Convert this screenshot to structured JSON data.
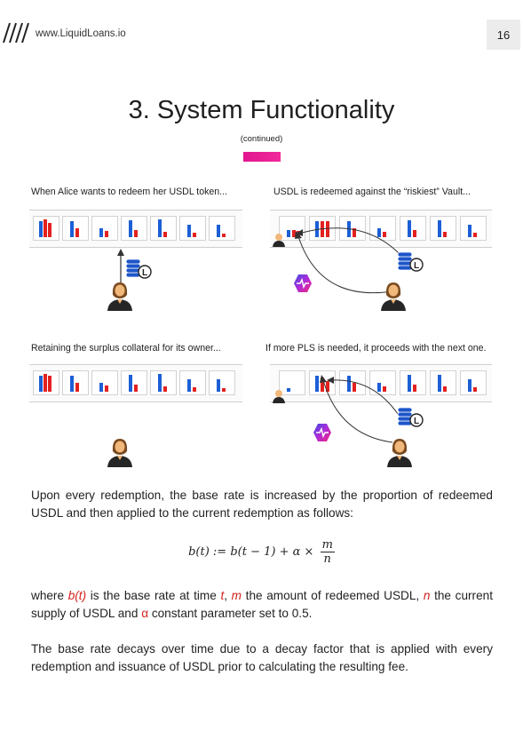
{
  "header": {
    "site_url": "www.LiquidLoans.io",
    "page_number": "16"
  },
  "section": {
    "title": "3. System Functionality",
    "subtitle": "(continued)",
    "accent_color": "#e91a92"
  },
  "panels": [
    {
      "caption": "When Alice wants to redeem her USDL token..."
    },
    {
      "caption": "USDL is redeemed against the “riskiest” Vault..."
    },
    {
      "caption": "Retaining the surplus collateral for its owner..."
    },
    {
      "caption": "If more PLS is needed, it proceeds with the next one."
    }
  ],
  "icons": {
    "coin_stack_letter": "L"
  },
  "body": {
    "para1": "Upon every redemption, the base rate is increased by the proportion of redeemed USDL and then applied to the current redemption as follows:",
    "formula_lhs": "b(t) := b(t − 1) + α ×",
    "formula_num": "m",
    "formula_den": "n",
    "p2_a": "where ",
    "p2_bt": "b(t)",
    "p2_b": " is the base rate at time ",
    "p2_t": "t",
    "p2_c": ", ",
    "p2_m": "m",
    "p2_d": " the amount of redeemed USDL, ",
    "p2_n": "n",
    "p2_e": " the current supply of USDL and ",
    "p2_alpha": "α",
    "p2_f": " constant parameter set to 0.5.",
    "para3": "The base rate decays over time due to a decay factor that is applied with every redemption and issuance of USDL prior to calculating the resulting fee."
  }
}
